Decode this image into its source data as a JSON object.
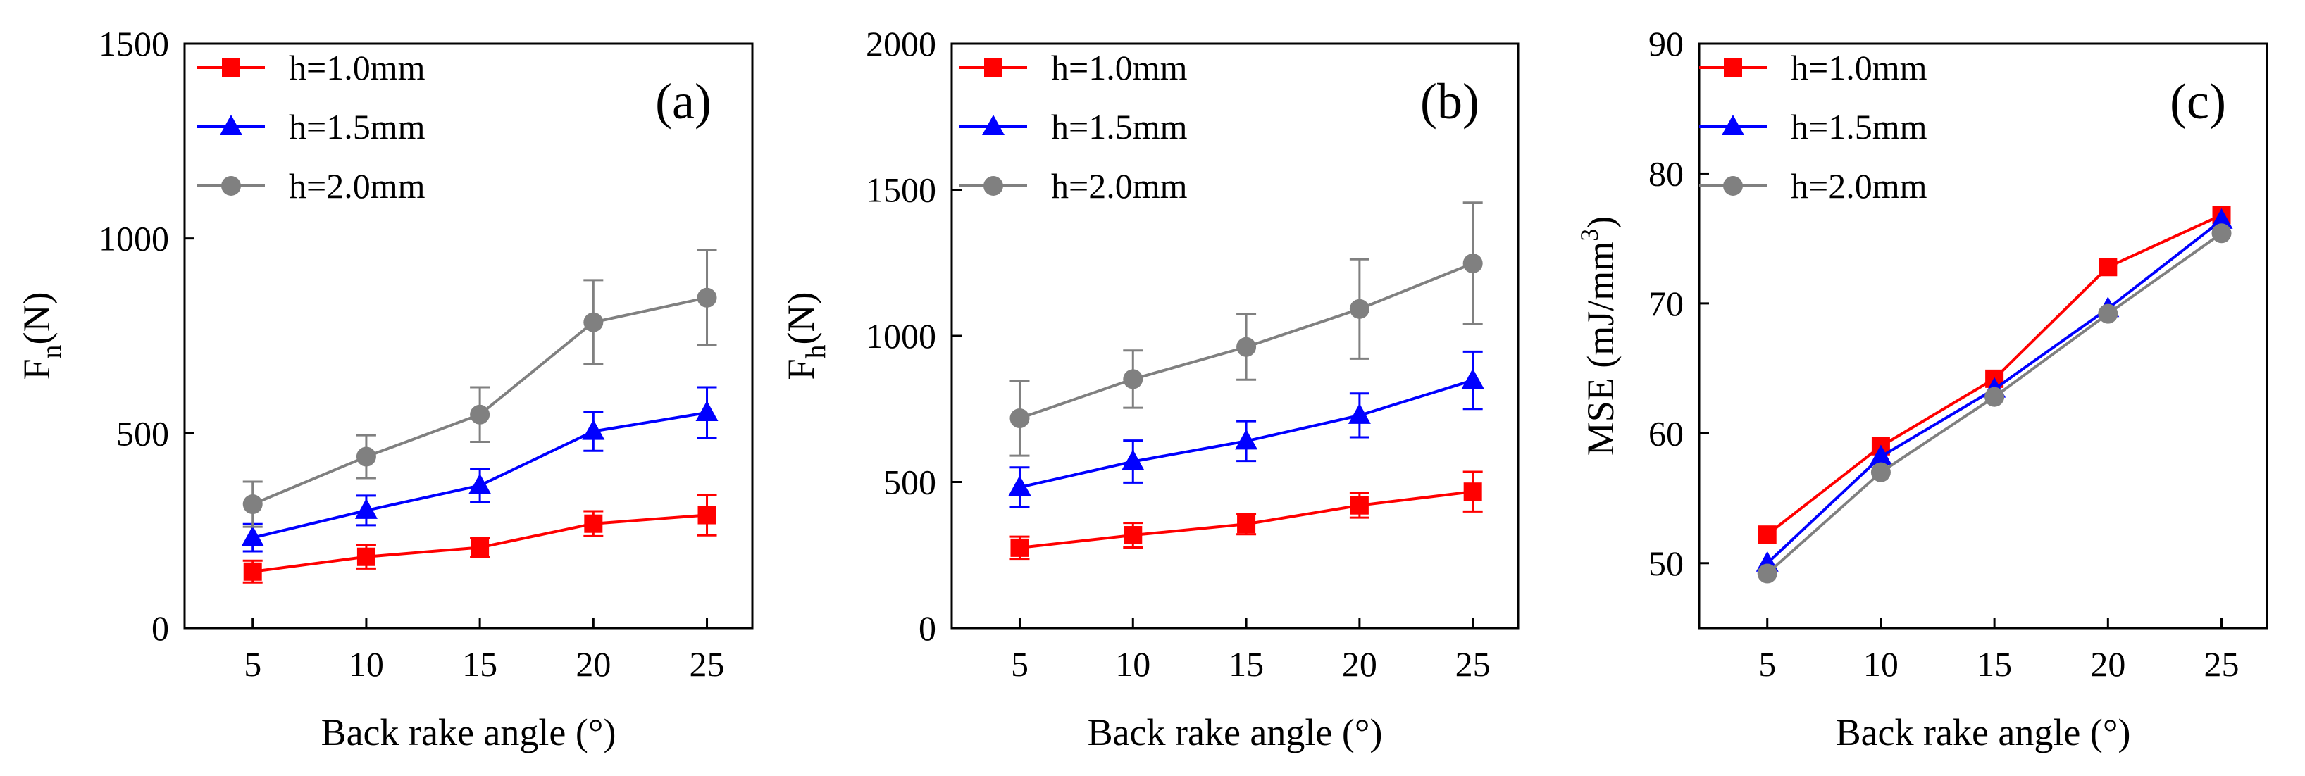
{
  "colors": {
    "h1": "#ff0000",
    "h15": "#0000ff",
    "h2": "#808080"
  },
  "chart_data": [
    {
      "type": "line",
      "panel": "(a)",
      "ylabel_main": "F",
      "ylabel_sub": "n",
      "ylabel_unit": "(N)",
      "xlabel": "Back rake angle (°)",
      "x": [
        5,
        10,
        15,
        20,
        25
      ],
      "x_tick_labels": [
        "5",
        "10",
        "15",
        "20",
        "25"
      ],
      "xlim": [
        2,
        27
      ],
      "ylim": [
        0,
        1500
      ],
      "y_ticks": [
        0,
        500,
        1000,
        1500
      ],
      "y_tick_labels": [
        "0",
        "500",
        "1000",
        "1500"
      ],
      "legend_position": "top-left",
      "series": [
        {
          "name": "h=1.0mm",
          "marker": "square",
          "color": "#ff0000",
          "values": [
            145,
            183,
            207,
            268,
            290
          ],
          "errors": [
            28,
            30,
            25,
            32,
            52
          ]
        },
        {
          "name": "h=1.5mm",
          "marker": "triangle",
          "color": "#0000ff",
          "values": [
            232,
            302,
            366,
            505,
            553
          ],
          "errors": [
            35,
            38,
            42,
            50,
            65
          ]
        },
        {
          "name": "h=2.0mm",
          "marker": "circle",
          "color": "#808080",
          "values": [
            318,
            440,
            548,
            785,
            848
          ],
          "errors": [
            58,
            55,
            70,
            108,
            122
          ]
        }
      ]
    },
    {
      "type": "line",
      "panel": "(b)",
      "ylabel_main": "F",
      "ylabel_sub": "h",
      "ylabel_unit": "(N)",
      "xlabel": "Back rake angle (°)",
      "x": [
        5,
        10,
        15,
        20,
        25
      ],
      "x_tick_labels": [
        "5",
        "10",
        "15",
        "20",
        "25"
      ],
      "xlim": [
        2,
        27
      ],
      "ylim": [
        0,
        2000
      ],
      "y_ticks": [
        0,
        500,
        1000,
        1500,
        2000
      ],
      "y_tick_labels": [
        "0",
        "500",
        "1000",
        "1500",
        "2000"
      ],
      "legend_position": "top-left",
      "series": [
        {
          "name": "h=1.0mm",
          "marker": "square",
          "color": "#ff0000",
          "values": [
            275,
            318,
            356,
            420,
            467
          ],
          "errors": [
            38,
            42,
            35,
            42,
            68
          ]
        },
        {
          "name": "h=1.5mm",
          "marker": "triangle",
          "color": "#0000ff",
          "values": [
            482,
            570,
            640,
            728,
            848
          ],
          "errors": [
            68,
            72,
            68,
            75,
            98
          ]
        },
        {
          "name": "h=2.0mm",
          "marker": "circle",
          "color": "#808080",
          "values": [
            718,
            852,
            962,
            1092,
            1248
          ],
          "errors": [
            128,
            98,
            112,
            170,
            208
          ]
        }
      ]
    },
    {
      "type": "line",
      "panel": "(c)",
      "ylabel_main": "MSE (mJ/mm",
      "ylabel_sup": "3",
      "ylabel_close": ")",
      "xlabel": "Back rake angle (°)",
      "x": [
        5,
        10,
        15,
        20,
        25
      ],
      "x_tick_labels": [
        "5",
        "10",
        "15",
        "20",
        "25"
      ],
      "xlim": [
        2,
        27
      ],
      "ylim": [
        45,
        90
      ],
      "y_ticks": [
        50,
        60,
        70,
        80,
        90
      ],
      "y_tick_labels": [
        "50",
        "60",
        "70",
        "80",
        "90"
      ],
      "legend_position": "top-left",
      "series": [
        {
          "name": "h=1.0mm",
          "marker": "square",
          "color": "#ff0000",
          "values": [
            52.2,
            59.0,
            64.2,
            72.8,
            76.8
          ]
        },
        {
          "name": "h=1.5mm",
          "marker": "triangle",
          "color": "#0000ff",
          "values": [
            50.0,
            58.2,
            63.4,
            69.6,
            76.4
          ]
        },
        {
          "name": "h=2.0mm",
          "marker": "circle",
          "color": "#808080",
          "values": [
            49.2,
            57.0,
            62.8,
            69.2,
            75.4
          ]
        }
      ]
    }
  ]
}
